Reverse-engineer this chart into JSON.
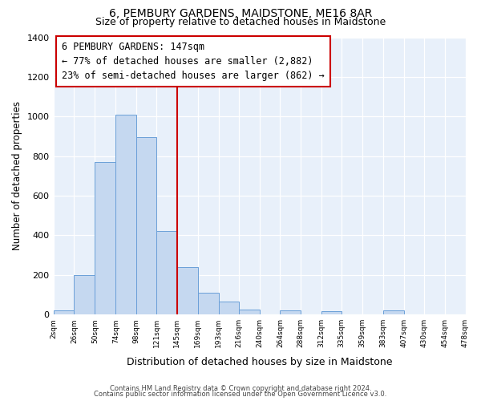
{
  "title": "6, PEMBURY GARDENS, MAIDSTONE, ME16 8AR",
  "subtitle": "Size of property relative to detached houses in Maidstone",
  "xlabel": "Distribution of detached houses by size in Maidstone",
  "ylabel": "Number of detached properties",
  "bin_edges": [
    2,
    26,
    50,
    74,
    98,
    121,
    145,
    169,
    193,
    216,
    240,
    264,
    288,
    312,
    335,
    359,
    383,
    407,
    430,
    454,
    478
  ],
  "bar_heights": [
    20,
    200,
    770,
    1010,
    895,
    420,
    240,
    110,
    65,
    25,
    0,
    20,
    0,
    15,
    0,
    0,
    20,
    0,
    0,
    0
  ],
  "bar_color": "#c5d8f0",
  "bar_edge_color": "#6a9fd8",
  "vline_x": 145,
  "vline_color": "#cc0000",
  "ylim": [
    0,
    1400
  ],
  "yticks": [
    0,
    200,
    400,
    600,
    800,
    1000,
    1200,
    1400
  ],
  "annotation_line1": "6 PEMBURY GARDENS: 147sqm",
  "annotation_line2": "← 77% of detached houses are smaller (2,882)",
  "annotation_line3": "23% of semi-detached houses are larger (862) →",
  "footer_line1": "Contains HM Land Registry data © Crown copyright and database right 2024.",
  "footer_line2": "Contains public sector information licensed under the Open Government Licence v3.0.",
  "background_color": "#ffffff",
  "plot_background": "#e8f0fa",
  "grid_color": "#ffffff",
  "tick_labels": [
    "2sqm",
    "26sqm",
    "50sqm",
    "74sqm",
    "98sqm",
    "121sqm",
    "145sqm",
    "169sqm",
    "193sqm",
    "216sqm",
    "240sqm",
    "264sqm",
    "288sqm",
    "312sqm",
    "335sqm",
    "359sqm",
    "383sqm",
    "407sqm",
    "430sqm",
    "454sqm",
    "478sqm"
  ]
}
